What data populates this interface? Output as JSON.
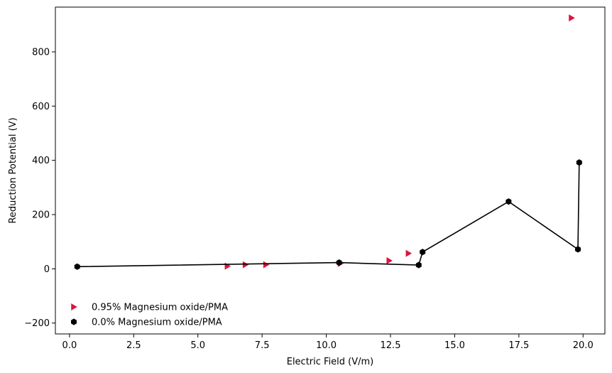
{
  "chart_data": {
    "type": "scatter",
    "xlabel": "Electric Field (V/m)",
    "ylabel": "Reduction Potential (V)",
    "xlim": [
      -0.55,
      20.85
    ],
    "ylim": [
      -240,
      965
    ],
    "x_ticks": [
      0.0,
      2.5,
      5.0,
      7.5,
      10.0,
      12.5,
      15.0,
      17.5,
      20.0
    ],
    "x_tick_labels": [
      "0.0",
      "2.5",
      "5.0",
      "7.5",
      "10.0",
      "12.5",
      "15.0",
      "17.5",
      "20.0"
    ],
    "y_ticks": [
      -200,
      0,
      200,
      400,
      600,
      800
    ],
    "y_tick_labels": [
      "−200",
      "0",
      "200",
      "400",
      "600",
      "800"
    ],
    "grid": false,
    "legend_position": "lower-left",
    "series": [
      {
        "name": "0.95% Magnesium oxide/PMA",
        "marker": "triangle-right",
        "color": "#dc143c",
        "line": false,
        "x": [
          6.15,
          6.85,
          7.65,
          10.55,
          12.45,
          13.2,
          19.55
        ],
        "y": [
          10,
          15,
          15,
          20,
          30,
          57,
          925
        ]
      },
      {
        "name": "0.0% Magnesium oxide/PMA",
        "marker": "hexagon",
        "color": "#000000",
        "line": true,
        "x": [
          0.3,
          10.5,
          13.6,
          13.75,
          17.1,
          19.8,
          19.85
        ],
        "y": [
          8,
          23,
          14,
          62,
          248,
          72,
          392
        ]
      }
    ]
  }
}
